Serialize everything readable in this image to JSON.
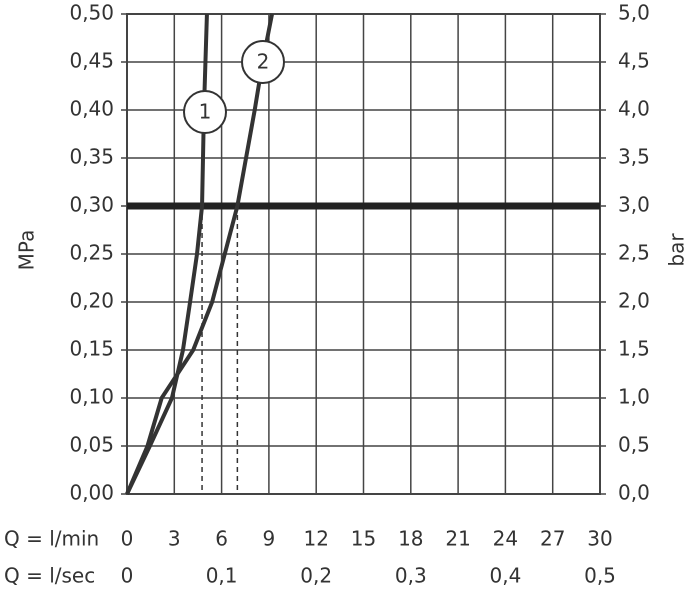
{
  "chart_data": {
    "type": "line",
    "y_label": "MPa",
    "y2_label": "bar",
    "x_label": "Q = l/min",
    "x2_label": "Q = l/sec",
    "series": [
      {
        "name": "1",
        "color": "#333333",
        "x": [
          0,
          1.45,
          2.85,
          3.55,
          4.0,
          4.44,
          4.76,
          4.88,
          5.07
        ],
        "values": [
          0,
          0.05,
          0.1,
          0.15,
          0.2,
          0.25,
          0.3,
          0.4,
          0.5
        ]
      },
      {
        "name": "2",
        "color": "#333333",
        "x": [
          0,
          1.3,
          2.2,
          4.2,
          5.4,
          7.0,
          8.1,
          8.6,
          9.2
        ],
        "values": [
          0,
          0.05,
          0.1,
          0.15,
          0.2,
          0.3,
          0.4,
          0.45,
          0.5
        ]
      }
    ],
    "reference_line": 0.3,
    "dashed_x": [
      4.76,
      7.0
    ],
    "xlim": [
      0,
      30
    ],
    "xticks": [
      0,
      3,
      6,
      9,
      12,
      15,
      18,
      21,
      24,
      27,
      30
    ],
    "x2lim": [
      0,
      0.5
    ],
    "x2ticks": [
      0,
      {
        "value": 0.1,
        "label": "0,1"
      },
      {
        "value": 0.2,
        "label": "0,2"
      },
      {
        "value": 0.3,
        "label": "0,3"
      },
      {
        "value": 0.4,
        "label": "0,4"
      },
      {
        "value": 0.5,
        "label": "0,5"
      }
    ],
    "ylim": [
      0,
      0.5
    ],
    "yticks": [
      {
        "value": 0,
        "label": "0,00"
      },
      {
        "value": 0.05,
        "label": "0,05"
      },
      {
        "value": 0.1,
        "label": "0,10"
      },
      {
        "value": 0.15,
        "label": "0,15"
      },
      {
        "value": 0.2,
        "label": "0,20"
      },
      {
        "value": 0.25,
        "label": "0,25"
      },
      {
        "value": 0.3,
        "label": "0,30"
      },
      {
        "value": 0.35,
        "label": "0,35"
      },
      {
        "value": 0.4,
        "label": "0,40"
      },
      {
        "value": 0.45,
        "label": "0,45"
      },
      {
        "value": 0.5,
        "label": "0,50"
      }
    ],
    "y2lim": [
      0,
      5
    ],
    "y2ticks": [
      {
        "value": 0,
        "label": "0,0"
      },
      {
        "value": 0.5,
        "label": "0,5"
      },
      {
        "value": 1,
        "label": "1,0"
      },
      {
        "value": 1.5,
        "label": "1,5"
      },
      {
        "value": 2,
        "label": "2,0"
      },
      {
        "value": 2.5,
        "label": "2,5"
      },
      {
        "value": 3,
        "label": "3,0"
      },
      {
        "value": 3.5,
        "label": "3,5"
      },
      {
        "value": 4,
        "label": "4,0"
      },
      {
        "value": 4.5,
        "label": "4,5"
      },
      {
        "value": 5,
        "label": "5,0"
      }
    ],
    "grid": true
  }
}
